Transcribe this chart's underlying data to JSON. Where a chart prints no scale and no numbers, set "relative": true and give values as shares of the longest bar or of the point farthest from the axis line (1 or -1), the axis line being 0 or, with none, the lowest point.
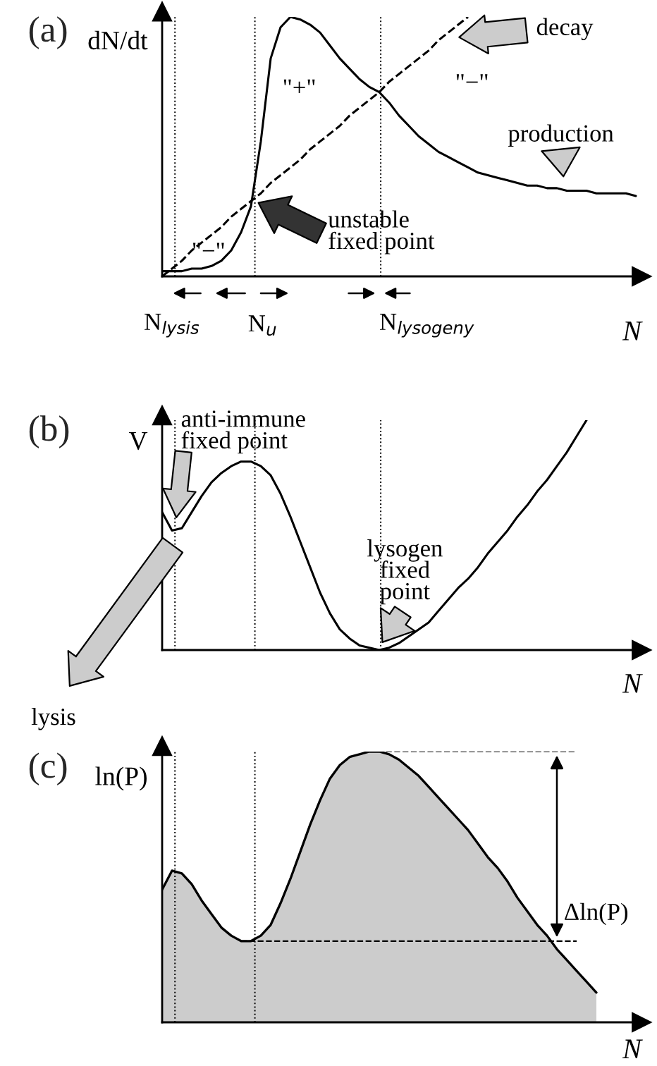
{
  "chart_data": [
    {
      "type": "line",
      "title": "(a)",
      "ylabel": "dN/dt",
      "xlabel": "N",
      "relative": true,
      "categories": [
        null,
        null,
        null,
        null,
        null,
        null,
        null,
        null,
        null,
        null,
        null,
        null,
        null,
        null,
        null,
        null,
        null,
        null,
        null,
        null,
        null,
        null,
        null,
        null,
        null,
        null,
        null,
        null,
        null,
        null,
        null,
        null,
        null,
        null,
        null,
        null,
        null,
        null,
        null,
        null,
        null,
        null,
        null,
        null,
        null,
        null,
        null,
        null,
        null
      ],
      "series": [
        {
          "name": "production",
          "color": "#000000",
          "line_style": "solid",
          "values": [
            0.02,
            0.02,
            0.02,
            0.03,
            0.03,
            0.04,
            0.06,
            0.1,
            0.17,
            0.27,
            0.52,
            0.84,
            0.96,
            1.0,
            0.99,
            0.97,
            0.94,
            0.89,
            0.84,
            0.8,
            0.76,
            0.73,
            0.71,
            0.67,
            0.62,
            0.58,
            0.54,
            0.51,
            0.48,
            0.46,
            0.44,
            0.42,
            0.4,
            0.39,
            0.38,
            0.37,
            0.36,
            0.35,
            0.35,
            0.34,
            0.34,
            0.33,
            0.33,
            0.33,
            0.32,
            0.32,
            0.32,
            0.32,
            0.31
          ]
        },
        {
          "name": "decay",
          "color": "#000000",
          "line_style": "dashed",
          "values": [
            0,
            0.03,
            0.06,
            0.1,
            0.13,
            0.16,
            0.19,
            0.23,
            0.26,
            0.29,
            0.32,
            0.36,
            0.39,
            0.42,
            0.45,
            0.49,
            0.52,
            0.55,
            0.58,
            0.62,
            0.65,
            0.68,
            0.71,
            0.75,
            0.78,
            0.81,
            0.84,
            0.87,
            0.91,
            0.94,
            0.97,
            1.0,
            null,
            null,
            null,
            null,
            null,
            null,
            null,
            null,
            null,
            null,
            null,
            null,
            null,
            null,
            null,
            null,
            null
          ]
        }
      ],
      "annotations": [
        "\"+\"",
        "\"−\"",
        "\"−\"",
        "unstable\nfixed point",
        "N$_{lysis}$",
        "N$_{u}$",
        "N$_{lysogeny}$"
      ]
    },
    {
      "type": "line",
      "title": "(b)",
      "ylabel": "V",
      "xlabel": "N",
      "relative": true,
      "categories": [
        null,
        null,
        null,
        null,
        null,
        null,
        null,
        null,
        null,
        null,
        null,
        null,
        null,
        null,
        null,
        null,
        null,
        null,
        null,
        null,
        null,
        null,
        null,
        null,
        null,
        null,
        null,
        null,
        null,
        null,
        null,
        null,
        null,
        null,
        null,
        null,
        null,
        null,
        null,
        null,
        null,
        null,
        null,
        null,
        null,
        null,
        null,
        null,
        null
      ],
      "series": [
        {
          "color": "#000000",
          "values": [
            0.6,
            0.52,
            0.53,
            0.6,
            0.67,
            0.73,
            0.77,
            0.8,
            0.82,
            0.82,
            0.8,
            0.76,
            0.68,
            0.58,
            0.47,
            0.36,
            0.25,
            0.16,
            0.09,
            0.05,
            0.02,
            0.01,
            0.0,
            0.01,
            0.03,
            0.06,
            0.09,
            0.12,
            0.17,
            0.22,
            0.27,
            0.31,
            0.36,
            0.42,
            0.47,
            0.52,
            0.58,
            0.63,
            0.69,
            0.74,
            0.8,
            0.86,
            0.93,
            1.0,
            null,
            null,
            null,
            null,
            null
          ]
        }
      ],
      "annotations": [
        "anti-immune\nfixed point",
        "lysogen\nfixed\npoint",
        "lysis"
      ]
    },
    {
      "type": "area",
      "title": "(c)",
      "ylabel": "ln(P)",
      "xlabel": "N",
      "relative": true,
      "categories": [
        null,
        null,
        null,
        null,
        null,
        null,
        null,
        null,
        null,
        null,
        null,
        null,
        null,
        null,
        null,
        null,
        null,
        null,
        null,
        null,
        null,
        null,
        null,
        null,
        null,
        null,
        null,
        null,
        null,
        null,
        null,
        null,
        null,
        null,
        null,
        null,
        null,
        null,
        null,
        null,
        null,
        null,
        null,
        null,
        null,
        null,
        null,
        null,
        null
      ],
      "series": [
        {
          "color": "#cccccc",
          "values": [
            0.49,
            0.56,
            0.55,
            0.51,
            0.45,
            0.4,
            0.35,
            0.32,
            0.3,
            0.3,
            0.32,
            0.36,
            0.44,
            0.53,
            0.63,
            0.73,
            0.82,
            0.9,
            0.95,
            0.98,
            0.99,
            1.0,
            1.0,
            0.99,
            0.97,
            0.94,
            0.91,
            0.87,
            0.83,
            0.79,
            0.75,
            0.71,
            0.66,
            0.61,
            0.57,
            0.52,
            0.46,
            0.41,
            0.36,
            0.32,
            0.27,
            0.23,
            0.19,
            0.15,
            0.11,
            null,
            null,
            null,
            null
          ]
        }
      ],
      "ref_lines": [
        {
          "axis": "y",
          "value": 1.0,
          "line_style": "dashed"
        },
        {
          "axis": "y",
          "value": 0.3,
          "line_style": "dashed"
        }
      ],
      "annotations": [
        "Δln(P)"
      ]
    }
  ]
}
